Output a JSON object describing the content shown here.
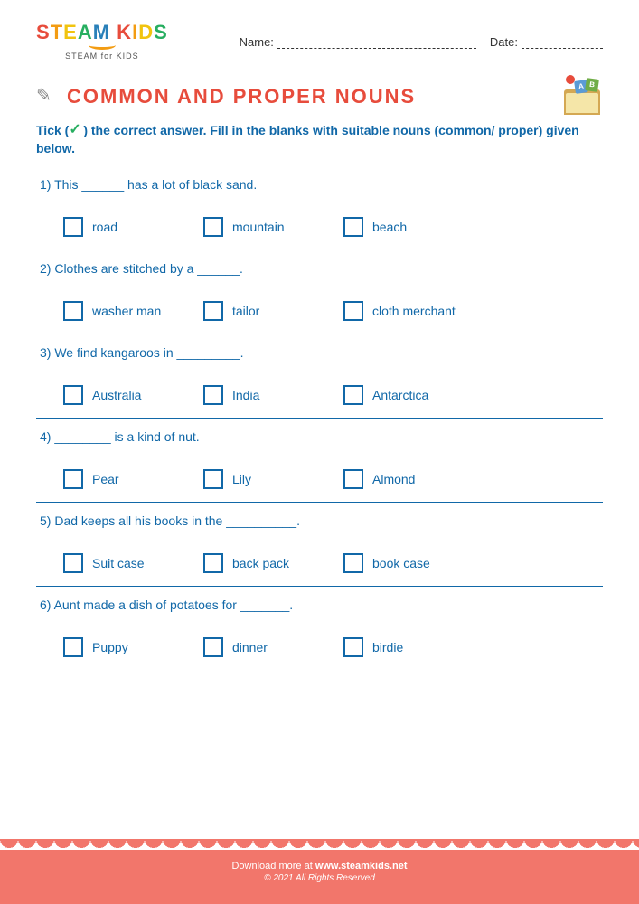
{
  "header": {
    "logo_main": "STEAM KIDS",
    "logo_sub": "STEAM for KIDS",
    "name_label": "Name:",
    "date_label": "Date:"
  },
  "title": "COMMON AND PROPER NOUNS",
  "instructions_pre": "Tick (",
  "instructions_post": ") the correct answer. Fill in the blanks with suitable nouns (common/ proper) given below.",
  "book_letters": {
    "a": "A",
    "b": "B"
  },
  "questions": [
    {
      "num": "1)",
      "text": "This ______ has a lot of black sand.",
      "opts": [
        "road",
        "mountain",
        "beach"
      ]
    },
    {
      "num": "2)",
      "text": "Clothes are stitched by a ______.",
      "opts": [
        "washer man",
        "tailor",
        "cloth merchant"
      ]
    },
    {
      "num": "3)",
      "text": "We find kangaroos in _________.",
      "opts": [
        "Australia",
        "India",
        "Antarctica"
      ]
    },
    {
      "num": "4)",
      "text": "________ is a kind of nut.",
      "opts": [
        "Pear",
        "Lily",
        "Almond"
      ]
    },
    {
      "num": "5)",
      "text": "Dad keeps all his books in the __________.",
      "opts": [
        "Suit case",
        "back pack",
        "book case"
      ]
    },
    {
      "num": "6)",
      "text": "Aunt made a dish of potatoes for _______.",
      "opts": [
        "Puppy",
        "dinner",
        "birdie"
      ]
    }
  ],
  "footer": {
    "download_text": "Download more at ",
    "url": "www.steamkids.net",
    "copyright": "© 2021 All Rights Reserved"
  },
  "colors": {
    "primary_text": "#1168a8",
    "title": "#e74c3c",
    "footer_bg": "#f2766b"
  }
}
